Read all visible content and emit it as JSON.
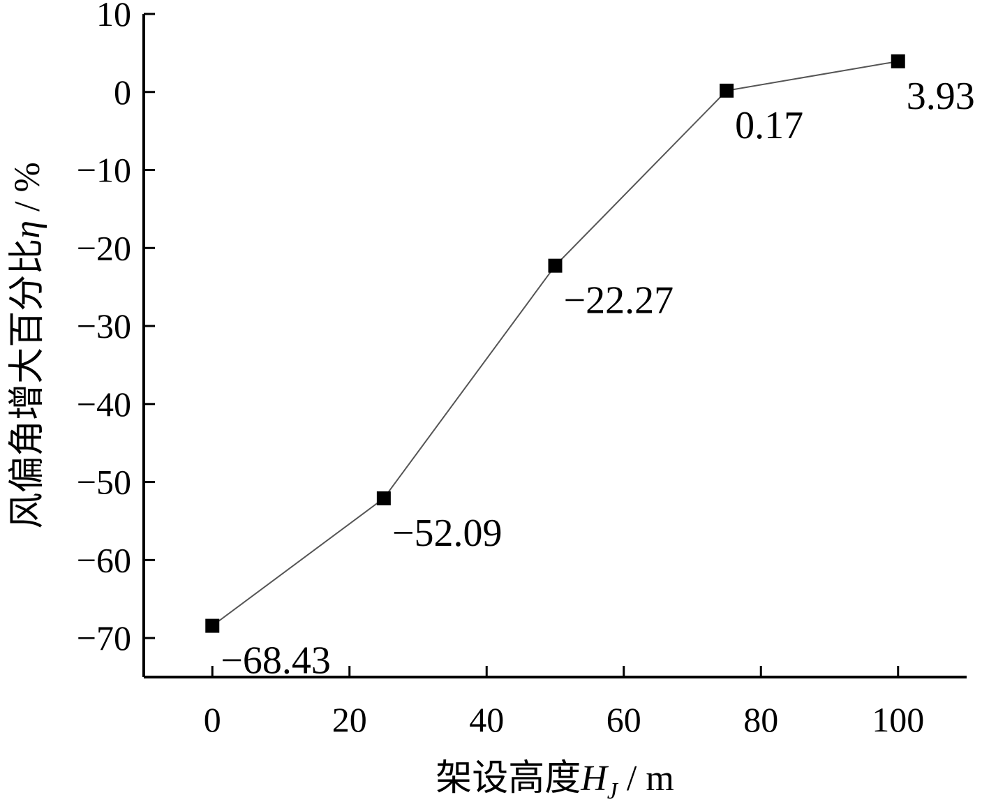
{
  "chart_data": {
    "type": "line",
    "title": "",
    "x": [
      0,
      25,
      50,
      75,
      100
    ],
    "series": [
      {
        "values": [
          -68.43,
          -52.09,
          -22.27,
          0.17,
          3.93
        ],
        "labels": [
          "−68.43",
          "−52.09",
          "−22.27",
          "0.17",
          "3.93"
        ]
      }
    ],
    "xlabel": {
      "text": "架设高度",
      "symbol": "H",
      "subscript": "J",
      "unit": " / m"
    },
    "ylabel": {
      "text": "风偏角增大百分比",
      "symbol": "η",
      "unit": " / %"
    },
    "xlim": [
      -10,
      110
    ],
    "ylim": [
      -75,
      10
    ],
    "xticks": [
      0,
      20,
      40,
      60,
      80,
      100
    ],
    "xtick_labels": [
      "0",
      "20",
      "40",
      "60",
      "80",
      "100"
    ],
    "yticks": [
      10,
      0,
      -10,
      -20,
      -30,
      -40,
      -50,
      -60,
      -70
    ],
    "ytick_labels": [
      "10",
      "0",
      "−10",
      "−20",
      "−30",
      "−40",
      "−50",
      "−60",
      "−70"
    ],
    "grid": false,
    "marker": "square",
    "line_color": "#555555",
    "marker_color": "#000000"
  }
}
